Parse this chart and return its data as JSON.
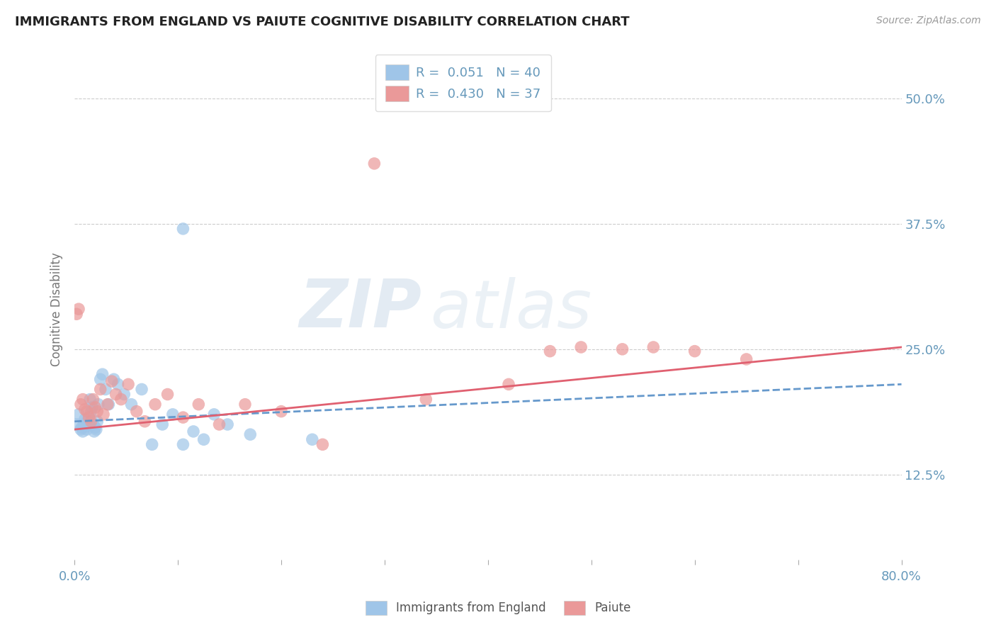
{
  "title": "IMMIGRANTS FROM ENGLAND VS PAIUTE COGNITIVE DISABILITY CORRELATION CHART",
  "source_text": "Source: ZipAtlas.com",
  "ylabel": "Cognitive Disability",
  "xlim": [
    0.0,
    0.8
  ],
  "ylim": [
    0.04,
    0.54
  ],
  "xticks": [
    0.0,
    0.1,
    0.2,
    0.3,
    0.4,
    0.5,
    0.6,
    0.7,
    0.8
  ],
  "yticks": [
    0.125,
    0.25,
    0.375,
    0.5
  ],
  "yticklabels": [
    "12.5%",
    "25.0%",
    "37.5%",
    "50.0%"
  ],
  "legend_r1": "R =  0.051   N = 40",
  "legend_r2": "R =  0.430   N = 37",
  "blue_color": "#9fc5e8",
  "pink_color": "#ea9999",
  "blue_line_color": "#6699cc",
  "pink_line_color": "#e06070",
  "watermark_zip": "ZIP",
  "watermark_atlas": "atlas",
  "title_color": "#222222",
  "axis_label_color": "#777777",
  "tick_color": "#6699bb",
  "grid_color": "#cccccc",
  "blue_scatter_x": [
    0.002,
    0.004,
    0.006,
    0.007,
    0.008,
    0.009,
    0.01,
    0.011,
    0.012,
    0.013,
    0.014,
    0.015,
    0.016,
    0.017,
    0.018,
    0.019,
    0.02,
    0.021,
    0.022,
    0.023,
    0.025,
    0.027,
    0.03,
    0.033,
    0.038,
    0.042,
    0.048,
    0.055,
    0.065,
    0.075,
    0.085,
    0.095,
    0.105,
    0.115,
    0.125,
    0.135,
    0.148,
    0.17,
    0.105,
    0.23
  ],
  "blue_scatter_y": [
    0.175,
    0.185,
    0.17,
    0.172,
    0.168,
    0.175,
    0.18,
    0.173,
    0.17,
    0.178,
    0.182,
    0.2,
    0.188,
    0.192,
    0.175,
    0.168,
    0.172,
    0.17,
    0.178,
    0.195,
    0.22,
    0.225,
    0.21,
    0.195,
    0.22,
    0.215,
    0.205,
    0.195,
    0.21,
    0.155,
    0.175,
    0.185,
    0.37,
    0.168,
    0.16,
    0.185,
    0.175,
    0.165,
    0.155,
    0.16
  ],
  "pink_scatter_x": [
    0.002,
    0.004,
    0.006,
    0.008,
    0.01,
    0.012,
    0.014,
    0.016,
    0.018,
    0.02,
    0.022,
    0.025,
    0.028,
    0.032,
    0.036,
    0.04,
    0.045,
    0.052,
    0.06,
    0.068,
    0.078,
    0.09,
    0.105,
    0.12,
    0.14,
    0.165,
    0.2,
    0.24,
    0.29,
    0.34,
    0.42,
    0.46,
    0.49,
    0.53,
    0.56,
    0.6,
    0.65
  ],
  "pink_scatter_y": [
    0.285,
    0.29,
    0.195,
    0.2,
    0.19,
    0.188,
    0.182,
    0.178,
    0.2,
    0.192,
    0.188,
    0.21,
    0.185,
    0.195,
    0.218,
    0.205,
    0.2,
    0.215,
    0.188,
    0.178,
    0.195,
    0.205,
    0.182,
    0.195,
    0.175,
    0.195,
    0.188,
    0.155,
    0.435,
    0.2,
    0.215,
    0.248,
    0.252,
    0.25,
    0.252,
    0.248,
    0.24
  ]
}
